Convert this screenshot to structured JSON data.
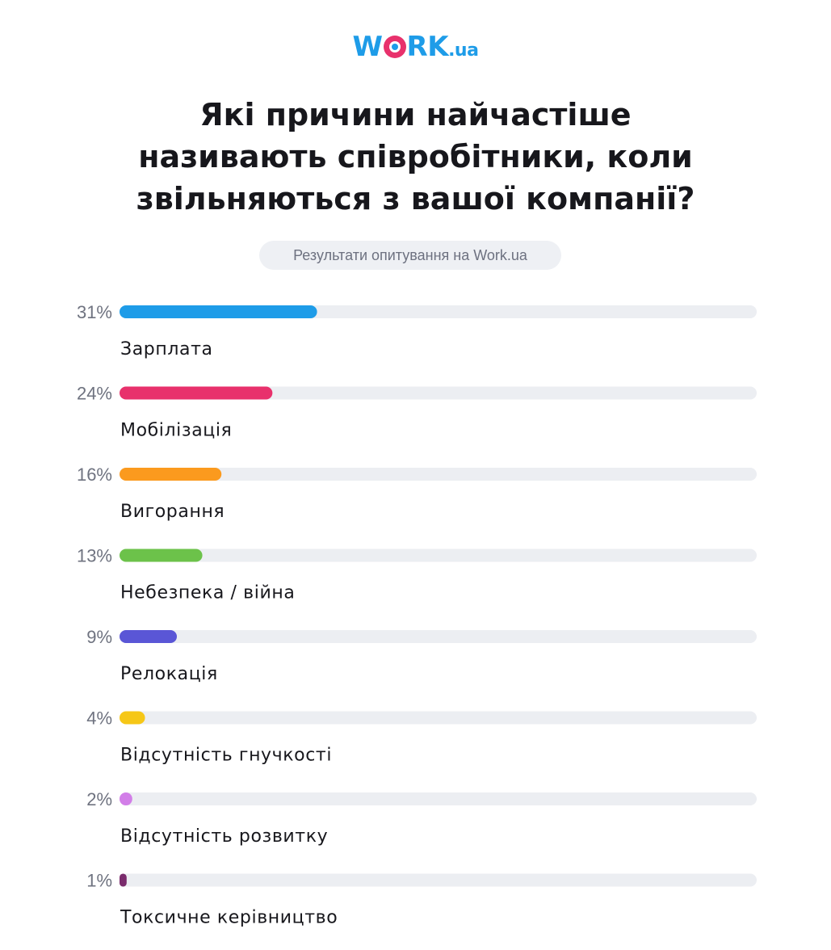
{
  "logo": {
    "brand": "WORK",
    "domain": ".ua",
    "brand_color": "#1e9ce8",
    "accent_color": "#e8316c"
  },
  "header": {
    "title_lines": [
      "Які причини найчастіше",
      "називають співробітники, коли",
      "звільняються з вашої компанії?"
    ],
    "subtitle": "Результати опитування на Work.ua"
  },
  "chart_data": {
    "type": "bar",
    "orientation": "horizontal",
    "value_format": "percent",
    "xlim": [
      0,
      100
    ],
    "categories": [
      "Зарплата",
      "Мобілізація",
      "Вигорання",
      "Небезпека / війна",
      "Релокація",
      "Відсутність гнучкості",
      "Відсутність розвитку",
      "Токсичне керівництво"
    ],
    "values": [
      31,
      24,
      16,
      13,
      9,
      4,
      2,
      1
    ],
    "value_labels": [
      "31%",
      "24%",
      "16%",
      "13%",
      "9%",
      "4%",
      "2%",
      "1%"
    ],
    "colors": [
      "#1e9ce8",
      "#e8316c",
      "#fb9a1e",
      "#6cc24a",
      "#5a56d6",
      "#f6c717",
      "#d27ee8",
      "#7a2b6c"
    ],
    "track_color": "#eceef2"
  }
}
